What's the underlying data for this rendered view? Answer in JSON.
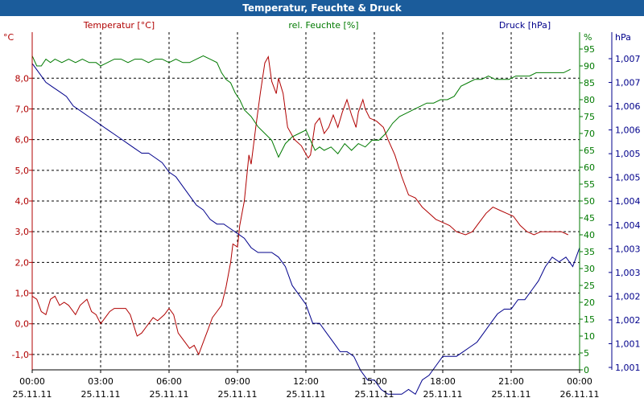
{
  "window": {
    "title": "Temperatur, Feuchte & Druck"
  },
  "colors": {
    "temperature": "#b00000",
    "humidity": "#007a00",
    "pressure": "#00008b",
    "titlebar": "#1b5c9b"
  },
  "chart_data": {
    "type": "line",
    "title": "Temperatur, Feuchte & Druck",
    "x_ticks": [
      {
        "time": "00:00",
        "date": "25.11.11"
      },
      {
        "time": "03:00",
        "date": "25.11.11"
      },
      {
        "time": "06:00",
        "date": "25.11.11"
      },
      {
        "time": "09:00",
        "date": "25.11.11"
      },
      {
        "time": "12:00",
        "date": "25.11.11"
      },
      {
        "time": "15:00",
        "date": "25.11.11"
      },
      {
        "time": "18:00",
        "date": "25.11.11"
      },
      {
        "time": "21:00",
        "date": "25.11.11"
      },
      {
        "time": "00:00",
        "date": "26.11.11"
      }
    ],
    "xlim": [
      0,
      24
    ],
    "grid": true,
    "axes": {
      "temperature": {
        "unit": "°C",
        "ylim": [
          -1.5,
          9.5
        ],
        "ticks": [
          "-1,0",
          "0,0",
          "1,0",
          "2,0",
          "3,0",
          "4,0",
          "5,0",
          "6,0",
          "7,0",
          "8,0"
        ],
        "tick_values": [
          -1,
          0,
          1,
          2,
          3,
          4,
          5,
          6,
          7,
          8
        ]
      },
      "humidity": {
        "unit": "%",
        "ylim": [
          0,
          100
        ],
        "ticks": [
          "0",
          "5",
          "10",
          "15",
          "20",
          "25",
          "30",
          "35",
          "40",
          "45",
          "50",
          "55",
          "60",
          "65",
          "70",
          "75",
          "80",
          "85",
          "90",
          "95"
        ],
        "tick_values": [
          0,
          5,
          10,
          15,
          20,
          25,
          30,
          35,
          40,
          45,
          50,
          55,
          60,
          65,
          70,
          75,
          80,
          85,
          90,
          95
        ]
      },
      "pressure": {
        "unit": "hPa",
        "ticks": [
          "1,001",
          "1,001",
          "1,002",
          "1,002",
          "1,003",
          "1,003",
          "1,004",
          "1,004",
          "1,005",
          "1,005",
          "1,006",
          "1,006",
          "1,007",
          "1,007"
        ]
      }
    },
    "series": [
      {
        "name": "Temperatur [°C]",
        "axis": "temperature",
        "points": [
          [
            0,
            0.9
          ],
          [
            0.2,
            0.8
          ],
          [
            0.4,
            0.4
          ],
          [
            0.6,
            0.3
          ],
          [
            0.8,
            0.8
          ],
          [
            1.0,
            0.9
          ],
          [
            1.2,
            0.6
          ],
          [
            1.4,
            0.7
          ],
          [
            1.6,
            0.6
          ],
          [
            1.9,
            0.3
          ],
          [
            2.1,
            0.6
          ],
          [
            2.4,
            0.8
          ],
          [
            2.6,
            0.4
          ],
          [
            2.8,
            0.3
          ],
          [
            3.0,
            0.0
          ],
          [
            3.2,
            0.2
          ],
          [
            3.4,
            0.4
          ],
          [
            3.6,
            0.5
          ],
          [
            3.9,
            0.5
          ],
          [
            4.1,
            0.5
          ],
          [
            4.3,
            0.3
          ],
          [
            4.6,
            -0.4
          ],
          [
            4.8,
            -0.3
          ],
          [
            5.0,
            -0.1
          ],
          [
            5.3,
            0.2
          ],
          [
            5.5,
            0.1
          ],
          [
            5.8,
            0.3
          ],
          [
            6.0,
            0.5
          ],
          [
            6.2,
            0.3
          ],
          [
            6.4,
            -0.3
          ],
          [
            6.7,
            -0.6
          ],
          [
            6.9,
            -0.8
          ],
          [
            7.1,
            -0.7
          ],
          [
            7.3,
            -1.0
          ],
          [
            7.5,
            -0.6
          ],
          [
            7.7,
            -0.2
          ],
          [
            7.9,
            0.2
          ],
          [
            8.1,
            0.4
          ],
          [
            8.3,
            0.6
          ],
          [
            8.5,
            1.2
          ],
          [
            8.7,
            2.0
          ],
          [
            8.8,
            2.6
          ],
          [
            9.0,
            2.5
          ],
          [
            9.1,
            3.2
          ],
          [
            9.3,
            4.0
          ],
          [
            9.5,
            5.5
          ],
          [
            9.6,
            5.2
          ],
          [
            9.8,
            6.4
          ],
          [
            10.0,
            7.5
          ],
          [
            10.2,
            8.5
          ],
          [
            10.35,
            8.7
          ],
          [
            10.5,
            7.9
          ],
          [
            10.7,
            7.5
          ],
          [
            10.8,
            8.0
          ],
          [
            11.0,
            7.5
          ],
          [
            11.2,
            6.4
          ],
          [
            11.5,
            6.0
          ],
          [
            11.8,
            5.8
          ],
          [
            12.1,
            5.4
          ],
          [
            12.2,
            5.5
          ],
          [
            12.4,
            6.5
          ],
          [
            12.6,
            6.7
          ],
          [
            12.8,
            6.2
          ],
          [
            13.0,
            6.4
          ],
          [
            13.2,
            6.8
          ],
          [
            13.4,
            6.4
          ],
          [
            13.6,
            6.9
          ],
          [
            13.8,
            7.3
          ],
          [
            14.0,
            6.8
          ],
          [
            14.2,
            6.4
          ],
          [
            14.3,
            6.9
          ],
          [
            14.5,
            7.3
          ],
          [
            14.6,
            7.0
          ],
          [
            14.8,
            6.7
          ],
          [
            15.1,
            6.6
          ],
          [
            15.4,
            6.4
          ],
          [
            15.6,
            6.0
          ],
          [
            15.9,
            5.5
          ],
          [
            16.2,
            4.8
          ],
          [
            16.5,
            4.2
          ],
          [
            16.8,
            4.1
          ],
          [
            17.1,
            3.8
          ],
          [
            17.4,
            3.6
          ],
          [
            17.7,
            3.4
          ],
          [
            18.0,
            3.3
          ],
          [
            18.3,
            3.2
          ],
          [
            18.6,
            3.0
          ],
          [
            19.0,
            2.9
          ],
          [
            19.3,
            3.0
          ],
          [
            19.6,
            3.3
          ],
          [
            19.9,
            3.6
          ],
          [
            20.2,
            3.8
          ],
          [
            20.5,
            3.7
          ],
          [
            20.8,
            3.6
          ],
          [
            21.1,
            3.5
          ],
          [
            21.4,
            3.2
          ],
          [
            21.7,
            3.0
          ],
          [
            22.0,
            2.9
          ],
          [
            22.3,
            3.0
          ],
          [
            22.6,
            3.0
          ],
          [
            22.9,
            3.0
          ],
          [
            23.2,
            3.0
          ],
          [
            23.5,
            2.9
          ]
        ]
      },
      {
        "name": "rel. Feuchte [%]",
        "axis": "humidity",
        "points": [
          [
            0,
            93
          ],
          [
            0.2,
            90
          ],
          [
            0.4,
            90
          ],
          [
            0.6,
            92
          ],
          [
            0.8,
            91
          ],
          [
            1.0,
            92
          ],
          [
            1.3,
            91
          ],
          [
            1.6,
            92
          ],
          [
            1.9,
            91
          ],
          [
            2.2,
            92
          ],
          [
            2.5,
            91
          ],
          [
            2.8,
            91
          ],
          [
            3.0,
            90
          ],
          [
            3.3,
            91
          ],
          [
            3.6,
            92
          ],
          [
            3.9,
            92
          ],
          [
            4.2,
            91
          ],
          [
            4.5,
            92
          ],
          [
            4.8,
            92
          ],
          [
            5.1,
            91
          ],
          [
            5.4,
            92
          ],
          [
            5.7,
            92
          ],
          [
            6.0,
            91
          ],
          [
            6.3,
            92
          ],
          [
            6.6,
            91
          ],
          [
            6.9,
            91
          ],
          [
            7.2,
            92
          ],
          [
            7.5,
            93
          ],
          [
            7.8,
            92
          ],
          [
            8.1,
            91
          ],
          [
            8.3,
            88
          ],
          [
            8.5,
            86
          ],
          [
            8.7,
            85
          ],
          [
            8.9,
            82
          ],
          [
            9.1,
            80
          ],
          [
            9.3,
            77
          ],
          [
            9.6,
            75
          ],
          [
            9.9,
            72
          ],
          [
            10.2,
            70
          ],
          [
            10.5,
            68
          ],
          [
            10.8,
            63
          ],
          [
            11.1,
            67
          ],
          [
            11.4,
            69
          ],
          [
            11.7,
            70
          ],
          [
            12.0,
            71
          ],
          [
            12.2,
            68
          ],
          [
            12.4,
            65
          ],
          [
            12.6,
            66
          ],
          [
            12.8,
            65
          ],
          [
            13.1,
            66
          ],
          [
            13.4,
            64
          ],
          [
            13.7,
            67
          ],
          [
            14.0,
            65
          ],
          [
            14.3,
            67
          ],
          [
            14.6,
            66
          ],
          [
            14.9,
            68
          ],
          [
            15.2,
            68
          ],
          [
            15.5,
            70
          ],
          [
            15.8,
            73
          ],
          [
            16.1,
            75
          ],
          [
            16.4,
            76
          ],
          [
            16.7,
            77
          ],
          [
            17.0,
            78
          ],
          [
            17.3,
            79
          ],
          [
            17.6,
            79
          ],
          [
            17.9,
            80
          ],
          [
            18.2,
            80
          ],
          [
            18.5,
            81
          ],
          [
            18.8,
            84
          ],
          [
            19.1,
            85
          ],
          [
            19.4,
            86
          ],
          [
            19.7,
            86
          ],
          [
            20.0,
            87
          ],
          [
            20.3,
            86
          ],
          [
            20.6,
            86
          ],
          [
            20.9,
            86
          ],
          [
            21.2,
            87
          ],
          [
            21.5,
            87
          ],
          [
            21.8,
            87
          ],
          [
            22.1,
            88
          ],
          [
            22.4,
            88
          ],
          [
            22.7,
            88
          ],
          [
            23.0,
            88
          ],
          [
            23.3,
            88
          ],
          [
            23.6,
            89
          ]
        ]
      },
      {
        "name": "Druck [hPa]",
        "axis": "pressure",
        "points": [
          [
            0,
            1.0074
          ],
          [
            0.3,
            1.0072
          ],
          [
            0.6,
            1.007
          ],
          [
            0.9,
            1.0069
          ],
          [
            1.2,
            1.0068
          ],
          [
            1.5,
            1.0067
          ],
          [
            1.8,
            1.0065
          ],
          [
            2.1,
            1.0064
          ],
          [
            2.4,
            1.0063
          ],
          [
            2.7,
            1.0062
          ],
          [
            3.0,
            1.0061
          ],
          [
            3.3,
            1.006
          ],
          [
            3.6,
            1.0059
          ],
          [
            3.9,
            1.0058
          ],
          [
            4.2,
            1.0057
          ],
          [
            4.5,
            1.0056
          ],
          [
            4.8,
            1.0055
          ],
          [
            5.1,
            1.0055
          ],
          [
            5.4,
            1.0054
          ],
          [
            5.7,
            1.0053
          ],
          [
            6.0,
            1.0051
          ],
          [
            6.3,
            1.005
          ],
          [
            6.6,
            1.0048
          ],
          [
            6.9,
            1.0046
          ],
          [
            7.2,
            1.0044
          ],
          [
            7.5,
            1.0043
          ],
          [
            7.8,
            1.0041
          ],
          [
            8.1,
            1.004
          ],
          [
            8.4,
            1.004
          ],
          [
            8.7,
            1.0039
          ],
          [
            9.0,
            1.0038
          ],
          [
            9.3,
            1.0037
          ],
          [
            9.6,
            1.0035
          ],
          [
            9.9,
            1.0034
          ],
          [
            10.2,
            1.0034
          ],
          [
            10.5,
            1.0034
          ],
          [
            10.8,
            1.0033
          ],
          [
            11.1,
            1.0031
          ],
          [
            11.4,
            1.0027
          ],
          [
            11.7,
            1.0025
          ],
          [
            12.0,
            1.0023
          ],
          [
            12.3,
            1.0019
          ],
          [
            12.6,
            1.0019
          ],
          [
            12.9,
            1.0017
          ],
          [
            13.2,
            1.0015
          ],
          [
            13.5,
            1.0013
          ],
          [
            13.8,
            1.0013
          ],
          [
            14.1,
            1.0012
          ],
          [
            14.4,
            1.0009
          ],
          [
            14.7,
            1.0007
          ],
          [
            15.0,
            1.0007
          ],
          [
            15.3,
            1.0005
          ],
          [
            15.6,
            1.0004
          ],
          [
            15.9,
            1.0004
          ],
          [
            16.2,
            1.0004
          ],
          [
            16.5,
            1.0005
          ],
          [
            16.8,
            1.0004
          ],
          [
            17.1,
            1.0007
          ],
          [
            17.4,
            1.0008
          ],
          [
            17.7,
            1.001
          ],
          [
            18.0,
            1.0012
          ],
          [
            18.3,
            1.0012
          ],
          [
            18.6,
            1.0012
          ],
          [
            18.9,
            1.0013
          ],
          [
            19.2,
            1.0014
          ],
          [
            19.5,
            1.0015
          ],
          [
            19.8,
            1.0017
          ],
          [
            20.1,
            1.0019
          ],
          [
            20.4,
            1.0021
          ],
          [
            20.7,
            1.0022
          ],
          [
            21.0,
            1.0022
          ],
          [
            21.3,
            1.0024
          ],
          [
            21.6,
            1.0024
          ],
          [
            21.9,
            1.0026
          ],
          [
            22.2,
            1.0028
          ],
          [
            22.5,
            1.0031
          ],
          [
            22.8,
            1.0033
          ],
          [
            23.1,
            1.0032
          ],
          [
            23.4,
            1.0033
          ],
          [
            23.7,
            1.0031
          ],
          [
            24.0,
            1.0035
          ]
        ]
      }
    ]
  }
}
